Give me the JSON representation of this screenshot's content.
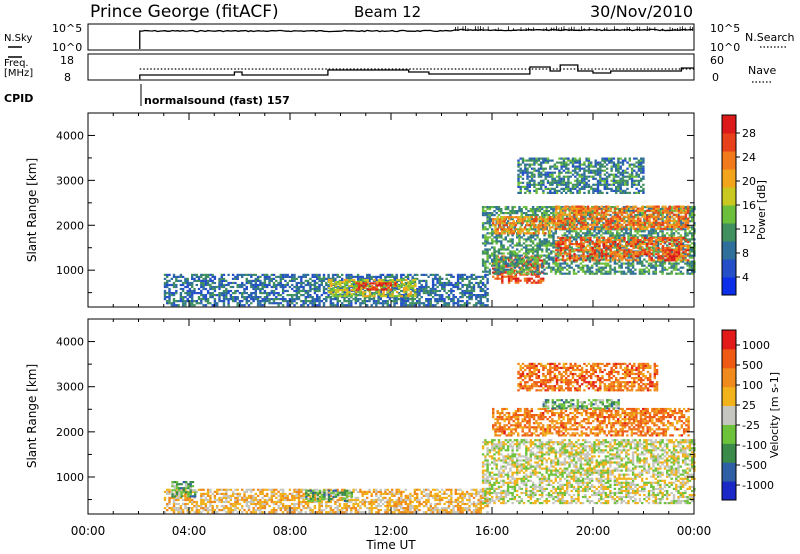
{
  "header": {
    "station": "Prince George (fitACF)",
    "beam": "Beam 12",
    "date": "30/Nov/2010"
  },
  "top_panels": {
    "nsky_label": "N.Sky",
    "nsky_ticks": [
      "10^5",
      "10^0"
    ],
    "nsearch_label": "N.Search",
    "nsearch_ticks": [
      "10^5",
      "10^0"
    ],
    "freq_label_1": "Freq.",
    "freq_label_2": "[MHz]",
    "freq_ticks": [
      "18",
      "8"
    ],
    "nave_label": "Nave",
    "nave_ticks": [
      "60",
      "0"
    ],
    "cpid_label": "CPID",
    "cpid_value": "normalsound (fast) 157"
  },
  "chart_data": [
    {
      "type": "heatmap",
      "name": "Power",
      "ylabel": "Slant Range [km]",
      "ylim": [
        180,
        4500
      ],
      "yticks": [
        "4000",
        "3000",
        "2000",
        "1000"
      ],
      "colorbar_label": "Power [dB]",
      "colorbar_ticks": [
        "28",
        "24",
        "20",
        "16",
        "12",
        "8",
        "4"
      ],
      "colors": [
        "#0b2ee8",
        "#244fc9",
        "#2f6f9c",
        "#3f8f5f",
        "#6cbf3a",
        "#c8c820",
        "#f2a41c",
        "#f07a1c",
        "#e8401a",
        "#dd1a1a"
      ],
      "regions": [
        {
          "t": [
            3.0,
            15.8
          ],
          "r": [
            200,
            900
          ],
          "level": 0.25
        },
        {
          "t": [
            9.5,
            13.0
          ],
          "r": [
            400,
            800
          ],
          "level": 0.55
        },
        {
          "t": [
            10.6,
            12.2
          ],
          "r": [
            550,
            700
          ],
          "level": 0.95
        },
        {
          "t": [
            16.0,
            18.0
          ],
          "r": [
            700,
            1300
          ],
          "level": 0.85
        },
        {
          "t": [
            15.6,
            24.0
          ],
          "r": [
            900,
            2400
          ],
          "level": 0.35
        },
        {
          "t": [
            16.0,
            18.5
          ],
          "r": [
            1800,
            2200
          ],
          "level": 0.7
        },
        {
          "t": [
            18.5,
            23.8
          ],
          "r": [
            1900,
            2400
          ],
          "level": 0.75
        },
        {
          "t": [
            18.5,
            23.8
          ],
          "r": [
            1200,
            1700
          ],
          "level": 0.8
        },
        {
          "t": [
            17.0,
            22.0
          ],
          "r": [
            2700,
            3500
          ],
          "level": 0.3
        }
      ]
    },
    {
      "type": "heatmap",
      "name": "Velocity",
      "ylabel": "Slant Range [km]",
      "ylim": [
        180,
        4500
      ],
      "yticks": [
        "4000",
        "3000",
        "2000",
        "1000"
      ],
      "colorbar_label": "Velocity [m s-1]",
      "colorbar_ticks": [
        "1000",
        "500",
        "100",
        "25",
        "-25",
        "-100",
        "-500",
        "-1000"
      ],
      "colors": [
        "#1a28c8",
        "#2e5fa4",
        "#3a8a4a",
        "#6cc23a",
        "#c6c6c0",
        "#f2b21c",
        "#f08a1c",
        "#ee5a14",
        "#e21a1a"
      ],
      "regions": [
        {
          "t": [
            3.0,
            15.8
          ],
          "r": [
            200,
            700
          ],
          "level": 0.6
        },
        {
          "t": [
            3.3,
            4.2
          ],
          "r": [
            550,
            900
          ],
          "level": 0.35
        },
        {
          "t": [
            8.6,
            10.4
          ],
          "r": [
            450,
            700
          ],
          "level": 0.35
        },
        {
          "t": [
            15.6,
            24.0
          ],
          "r": [
            400,
            1800
          ],
          "level": 0.5
        },
        {
          "t": [
            16.0,
            23.8
          ],
          "r": [
            1900,
            2500
          ],
          "level": 0.75
        },
        {
          "t": [
            17.0,
            22.5
          ],
          "r": [
            2900,
            3500
          ],
          "level": 0.78
        },
        {
          "t": [
            18.0,
            21.0
          ],
          "r": [
            2500,
            2700
          ],
          "level": 0.35
        }
      ]
    }
  ],
  "time_axis": {
    "label": "Time UT",
    "ticks": [
      "00:00",
      "04:00",
      "08:00",
      "12:00",
      "16:00",
      "20:00",
      "00:00"
    ]
  }
}
